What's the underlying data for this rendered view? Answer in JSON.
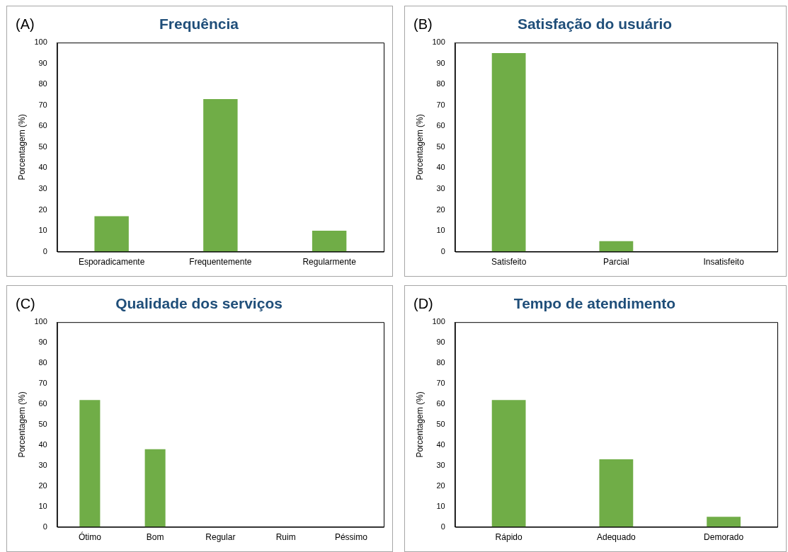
{
  "chart_data": [
    {
      "type": "bar",
      "title": "Frequência",
      "annotations": [
        "(A)"
      ],
      "ylabel": "Porcentagem (%)",
      "categories": [
        "Esporadicamente",
        "Frequentemente",
        "Regularmente"
      ],
      "values": [
        17,
        73,
        10
      ],
      "color": "#70ad47",
      "ylim": [
        0,
        100
      ],
      "yticks": [
        0,
        10,
        20,
        30,
        40,
        50,
        60,
        70,
        80,
        90,
        100
      ]
    },
    {
      "type": "bar",
      "title": "Satisfação do usuário",
      "annotations": [
        "(B)"
      ],
      "ylabel": "Porcentagem (%)",
      "categories": [
        "Satisfeito",
        "Parcial",
        "Insatisfeito"
      ],
      "values": [
        95,
        5,
        0
      ],
      "color": "#70ad47",
      "ylim": [
        0,
        100
      ],
      "yticks": [
        0,
        10,
        20,
        30,
        40,
        50,
        60,
        70,
        80,
        90,
        100
      ]
    },
    {
      "type": "bar",
      "title": "Qualidade dos serviços",
      "annotations": [
        "(C)"
      ],
      "ylabel": "Porcentagem (%)",
      "categories": [
        "Ótimo",
        "Bom",
        "Regular",
        "Ruim",
        "Péssimo"
      ],
      "values": [
        62,
        38,
        0,
        0,
        0
      ],
      "color": "#70ad47",
      "ylim": [
        0,
        100
      ],
      "yticks": [
        0,
        10,
        20,
        30,
        40,
        50,
        60,
        70,
        80,
        90,
        100
      ]
    },
    {
      "type": "bar",
      "title": "Tempo de atendimento",
      "annotations": [
        "(D)"
      ],
      "ylabel": "Porcentagem (%)",
      "categories": [
        "Rápido",
        "Adequado",
        "Demorado"
      ],
      "values": [
        62,
        33,
        5
      ],
      "color": "#70ad47",
      "ylim": [
        0,
        100
      ],
      "yticks": [
        0,
        10,
        20,
        30,
        40,
        50,
        60,
        70,
        80,
        90,
        100
      ]
    }
  ]
}
